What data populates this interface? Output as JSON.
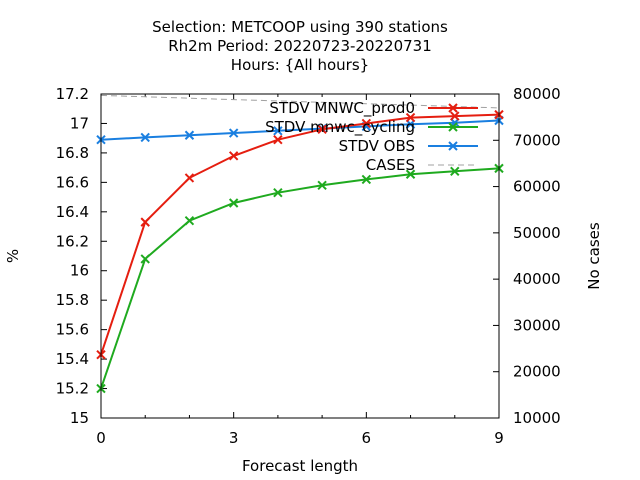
{
  "chart_data": {
    "type": "line",
    "title": [
      "Selection: METCOOP using   390 stations",
      "Rh2m   Period: 20220723-20220731",
      "Hours: {All hours}"
    ],
    "xlabel": "Forecast length",
    "ylabel": "%",
    "y2label": "No cases",
    "xlim": [
      0,
      9
    ],
    "ylim": [
      15,
      17.2
    ],
    "y2lim": [
      10000,
      80000
    ],
    "x_ticks": [
      "0",
      "3",
      "6",
      "9"
    ],
    "y_ticks": [
      "15",
      "15.2",
      "15.4",
      "15.6",
      "15.8",
      "16",
      "16.2",
      "16.4",
      "16.6",
      "16.8",
      "17",
      "17.2"
    ],
    "y2_ticks": [
      "10000",
      "20000",
      "30000",
      "40000",
      "50000",
      "60000",
      "70000",
      "80000"
    ],
    "grid": false,
    "legend_position": "top-right",
    "x": [
      0,
      1,
      2,
      3,
      4,
      5,
      6,
      7,
      8,
      9
    ],
    "series": [
      {
        "name": "STDV MNWC_prod0",
        "color": "#e51e10",
        "marker": "x",
        "axis": "y1",
        "values": [
          15.43,
          16.33,
          16.63,
          16.78,
          16.89,
          16.96,
          17.0,
          17.04,
          17.05,
          17.06
        ]
      },
      {
        "name": "STDV mnwc_cycling",
        "color": "#1faa1f",
        "marker": "x",
        "axis": "y1",
        "values": [
          15.2,
          16.08,
          16.34,
          16.46,
          16.53,
          16.58,
          16.62,
          16.655,
          16.675,
          16.695
        ]
      },
      {
        "name": "STDV OBS",
        "color": "#1a7fe0",
        "marker": "x",
        "axis": "y1",
        "values": [
          16.89,
          16.905,
          16.92,
          16.935,
          16.95,
          16.965,
          16.98,
          16.995,
          17.005,
          17.02
        ]
      },
      {
        "name": "CASES",
        "color": "#a0a0a0",
        "marker": "none",
        "dashed": true,
        "axis": "y2",
        "values": [
          79700,
          79400,
          79100,
          78800,
          78500,
          78200,
          77900,
          77600,
          77300,
          77000
        ]
      }
    ]
  }
}
